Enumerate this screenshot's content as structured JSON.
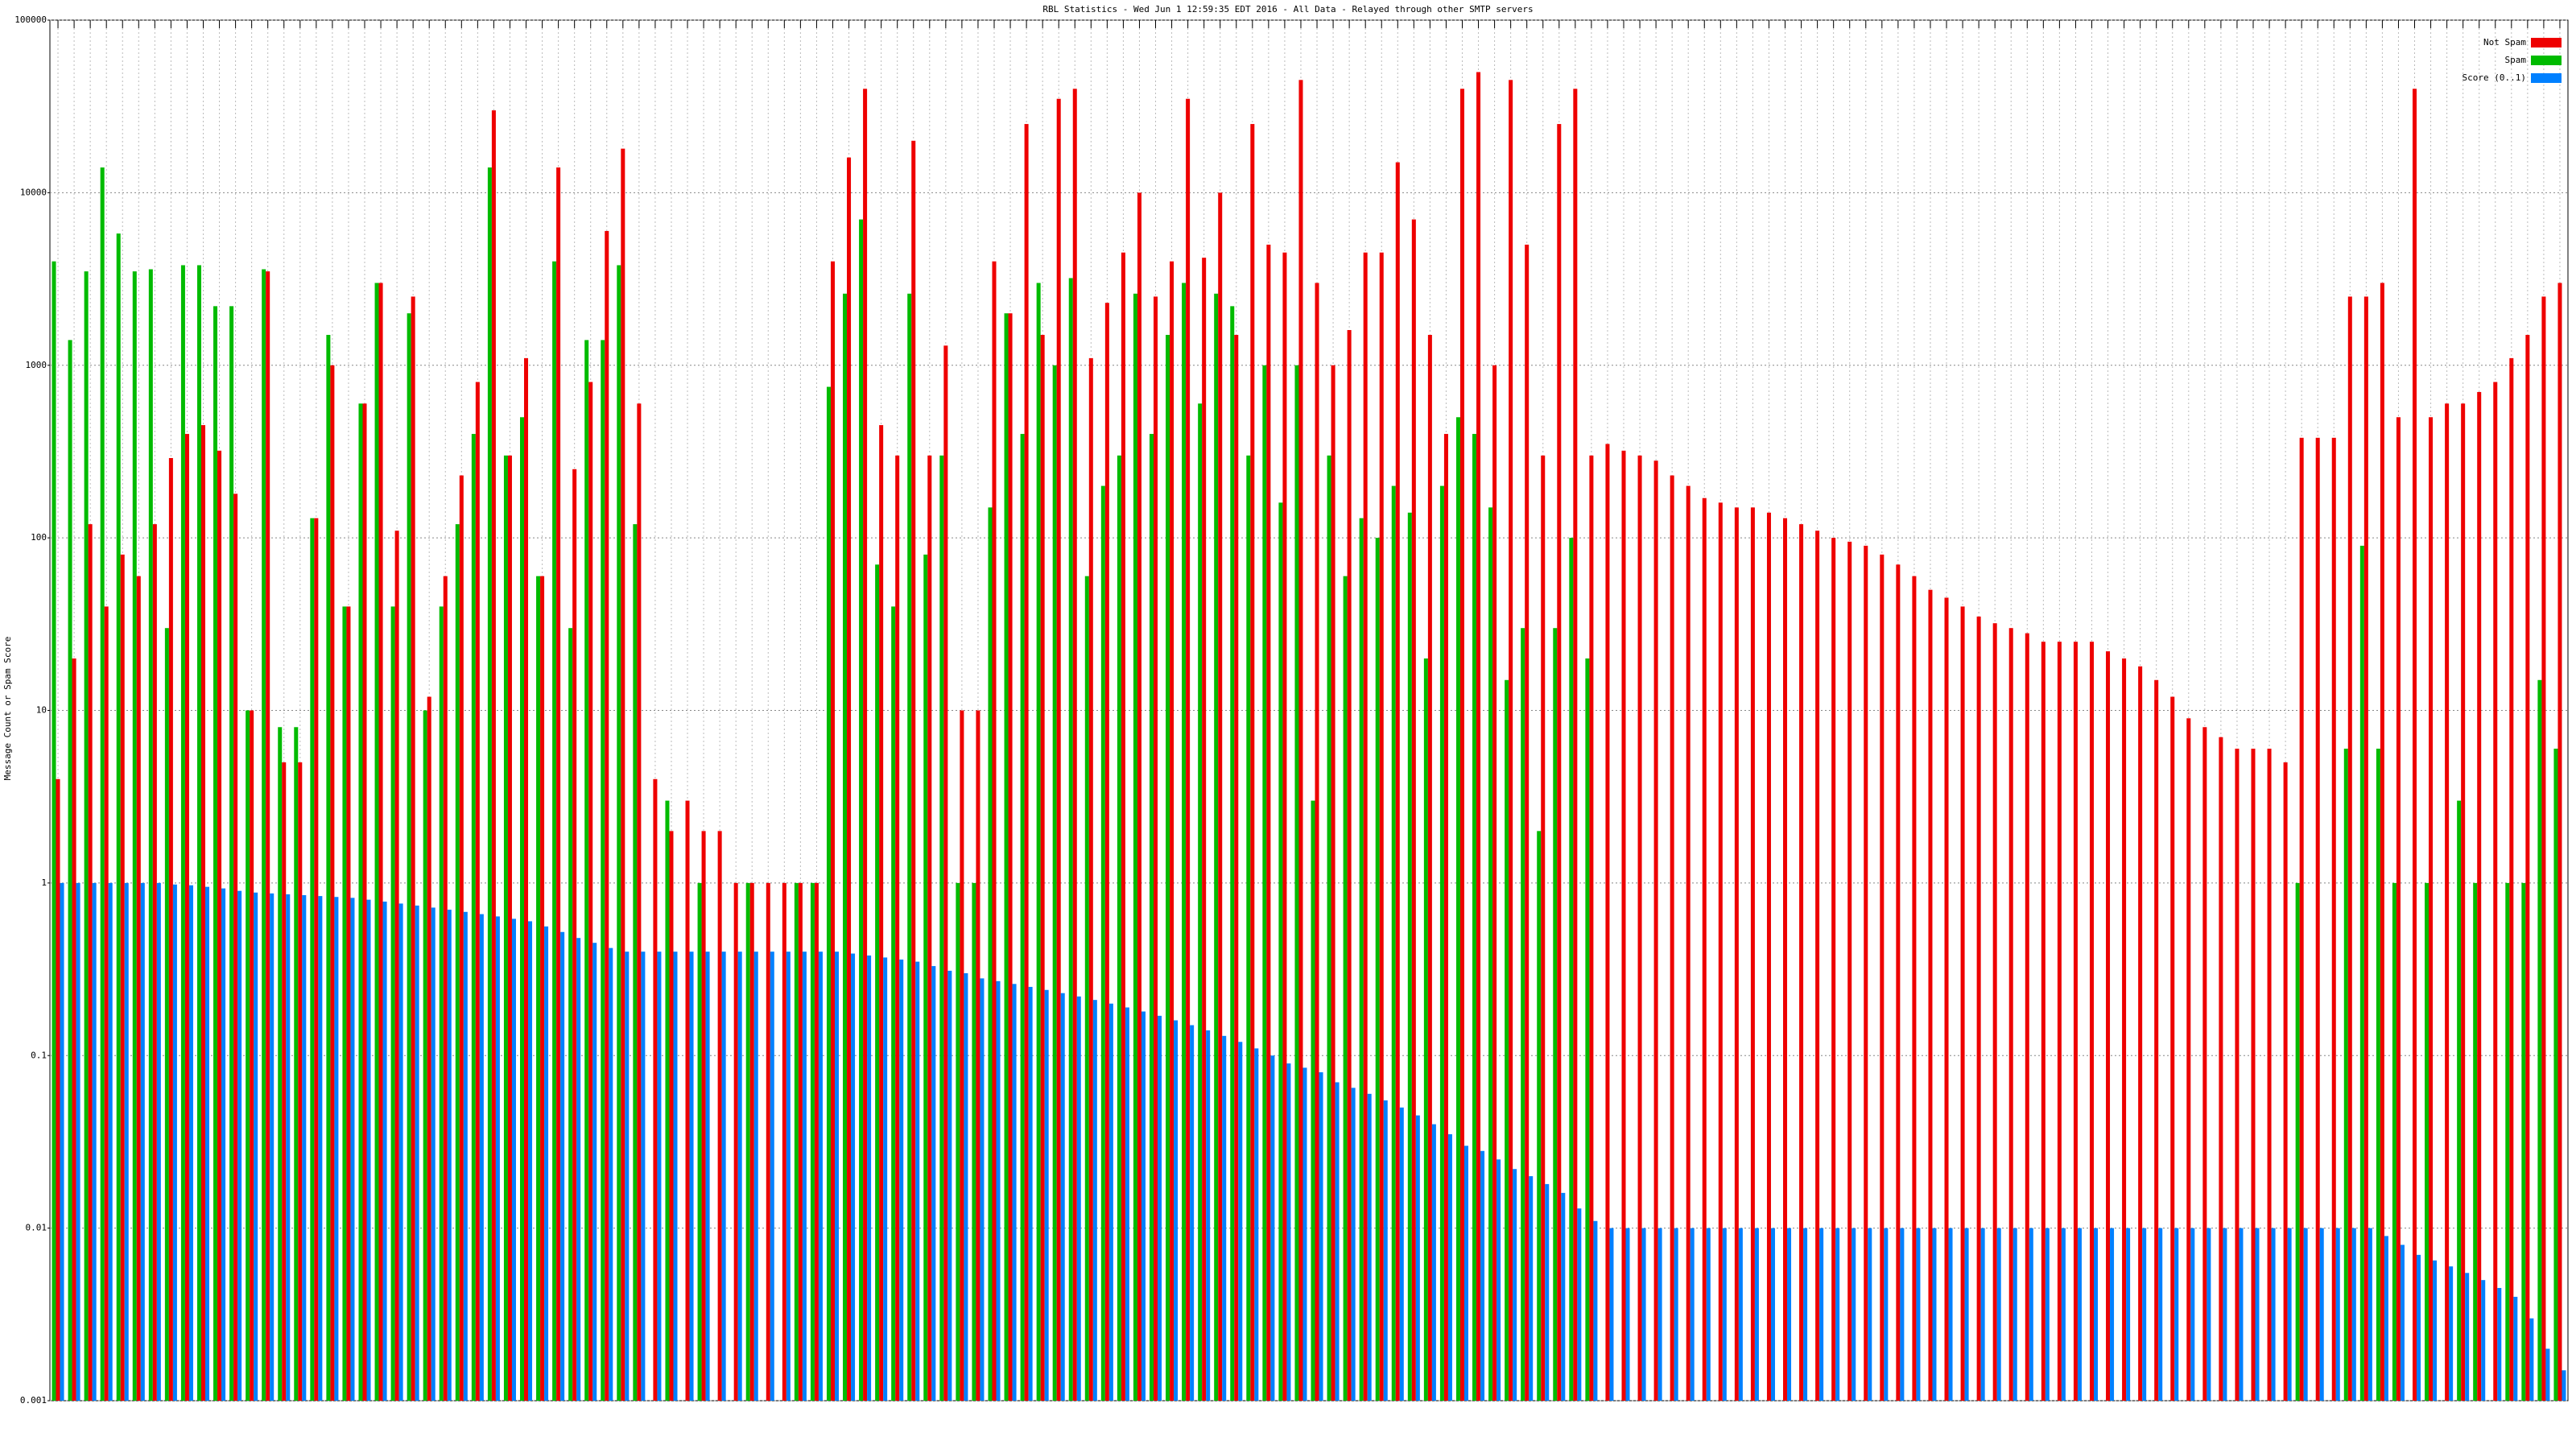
{
  "chart_data": {
    "type": "bar",
    "title": "RBL Statistics - Wed Jun  1 12:59:35 EDT 2016 - All Data - Relayed through other SMTP servers",
    "y_label": "Message Count or Spam Score",
    "log_scale": true,
    "grid": true,
    "legend": "top-right",
    "ylim": [
      0.001,
      100000
    ],
    "yticks": [
      0.001,
      0.01,
      0.1,
      1,
      10,
      100,
      1000,
      10000,
      100000
    ],
    "categories": [
      null,
      null,
      null,
      null,
      null,
      null,
      null,
      null,
      null,
      null,
      null,
      null,
      null,
      null,
      null,
      null,
      null,
      null,
      null,
      null,
      null,
      null,
      null,
      null,
      null,
      null,
      null,
      null,
      null,
      null,
      null,
      null,
      null,
      null,
      null,
      null,
      null,
      null,
      null,
      null,
      null,
      null,
      null,
      null,
      null,
      null,
      null,
      null,
      null,
      null,
      null,
      null,
      null,
      null,
      null,
      null,
      null,
      null,
      null,
      null,
      null,
      null,
      null,
      null,
      null,
      null,
      null,
      null,
      null,
      null,
      null,
      null,
      null,
      null,
      null,
      null,
      null,
      null,
      null,
      null,
      null,
      null,
      null,
      null,
      null,
      null,
      null,
      null,
      null,
      null,
      null,
      null,
      null,
      null,
      null,
      null,
      null,
      null,
      null,
      null,
      null,
      null,
      null,
      null,
      null,
      null,
      null,
      null,
      null,
      null,
      null,
      null,
      null,
      null,
      null,
      null,
      null,
      null,
      null,
      null,
      null,
      null,
      null,
      null,
      null,
      null,
      null,
      null,
      null,
      null,
      null,
      null,
      null,
      null,
      null,
      null,
      null,
      null,
      null,
      null,
      null,
      null,
      null,
      null,
      null,
      null,
      null,
      null,
      null,
      null,
      null,
      null,
      null,
      null,
      null,
      null
    ],
    "series": [
      {
        "name": "Spam",
        "color": "#00bb00",
        "values": [
          4000,
          1400,
          3500,
          14000,
          5800,
          3500,
          3600,
          30,
          3800,
          3800,
          2200,
          2200,
          10,
          3600,
          8,
          8,
          130,
          1500,
          40,
          600,
          3000,
          40,
          2000,
          10,
          40,
          120,
          400,
          14000,
          300,
          500,
          60,
          4000,
          30,
          1400,
          1400,
          3800,
          120,
          null,
          3,
          null,
          1,
          null,
          null,
          1,
          null,
          null,
          1,
          1,
          750,
          2600,
          7000,
          70,
          40,
          2600,
          80,
          300,
          1,
          1,
          150,
          2000,
          400,
          3000,
          1000,
          3200,
          60,
          200,
          300,
          2600,
          400,
          1500,
          3000,
          600,
          2600,
          2200,
          300,
          1000,
          160,
          1000,
          3,
          300,
          60,
          130,
          100,
          200,
          140,
          20,
          200,
          500,
          400,
          150,
          15,
          30,
          2,
          30,
          100,
          20,
          null,
          null,
          null,
          null,
          null,
          null,
          null,
          null,
          null,
          null,
          null,
          null,
          null,
          null,
          null,
          null,
          null,
          null,
          null,
          null,
          null,
          null,
          null,
          null,
          null,
          null,
          null,
          null,
          null,
          null,
          null,
          null,
          null,
          null,
          null,
          null,
          null,
          null,
          null,
          null,
          null,
          null,
          null,
          1,
          null,
          null,
          6,
          90,
          6,
          1,
          null,
          1,
          null,
          3,
          1,
          null,
          1,
          1,
          15,
          6
        ]
      },
      {
        "name": "Not Spam",
        "color": "#ee0000",
        "values": [
          4,
          20,
          120,
          40,
          80,
          60,
          120,
          290,
          400,
          450,
          320,
          180,
          10,
          3500,
          5,
          5,
          130,
          1000,
          40,
          600,
          3000,
          110,
          2500,
          12,
          60,
          230,
          800,
          30000,
          300,
          1100,
          60,
          14000,
          250,
          800,
          6000,
          18000,
          600,
          4,
          2,
          3,
          2,
          2,
          1,
          1,
          1,
          1,
          1,
          1,
          4000,
          16000,
          40000,
          450,
          300,
          20000,
          300,
          1300,
          10,
          10,
          4000,
          2000,
          25000,
          1500,
          35000,
          40000,
          1100,
          2300,
          4500,
          10000,
          2500,
          4000,
          35000,
          4200,
          10000,
          1500,
          25000,
          5000,
          4500,
          45000,
          3000,
          1000,
          1600,
          4500,
          4500,
          15000,
          7000,
          1500,
          400,
          40000,
          50000,
          1000,
          45000,
          5000,
          300,
          25000,
          40000,
          300,
          350,
          320,
          300,
          280,
          230,
          200,
          170,
          160,
          150,
          150,
          140,
          130,
          120,
          110,
          100,
          95,
          90,
          80,
          70,
          60,
          50,
          45,
          40,
          35,
          32,
          30,
          28,
          25,
          25,
          25,
          25,
          22,
          20,
          18,
          15,
          12,
          9,
          8,
          7,
          6,
          6,
          6,
          5,
          380,
          380,
          380,
          2500,
          2500,
          3000,
          500,
          40000,
          500,
          600,
          600,
          700,
          800,
          1100,
          1500,
          2500,
          3000
        ]
      },
      {
        "name": "Score (0..1)",
        "color": "#0080ff",
        "values": [
          1,
          1,
          1,
          1,
          1,
          1,
          1,
          0.98,
          0.97,
          0.95,
          0.93,
          0.9,
          0.88,
          0.87,
          0.86,
          0.85,
          0.84,
          0.83,
          0.82,
          0.8,
          0.78,
          0.76,
          0.74,
          0.72,
          0.7,
          0.68,
          0.66,
          0.64,
          0.62,
          0.6,
          0.56,
          0.52,
          0.48,
          0.45,
          0.42,
          0.4,
          0.4,
          0.4,
          0.4,
          0.4,
          0.4,
          0.4,
          0.4,
          0.4,
          0.4,
          0.4,
          0.4,
          0.4,
          0.4,
          0.39,
          0.38,
          0.37,
          0.36,
          0.35,
          0.33,
          0.31,
          0.3,
          0.28,
          0.27,
          0.26,
          0.25,
          0.24,
          0.23,
          0.22,
          0.21,
          0.2,
          0.19,
          0.18,
          0.17,
          0.16,
          0.15,
          0.14,
          0.13,
          0.12,
          0.11,
          0.1,
          0.09,
          0.085,
          0.08,
          0.07,
          0.065,
          0.06,
          0.055,
          0.05,
          0.045,
          0.04,
          0.035,
          0.03,
          0.028,
          0.025,
          0.022,
          0.02,
          0.018,
          0.016,
          0.013,
          0.011,
          0.01,
          0.01,
          0.01,
          0.01,
          0.01,
          0.01,
          0.01,
          0.01,
          0.01,
          0.01,
          0.01,
          0.01,
          0.01,
          0.01,
          0.01,
          0.01,
          0.01,
          0.01,
          0.01,
          0.01,
          0.01,
          0.01,
          0.01,
          0.01,
          0.01,
          0.01,
          0.01,
          0.01,
          0.01,
          0.01,
          0.01,
          0.01,
          0.01,
          0.01,
          0.01,
          0.01,
          0.01,
          0.01,
          0.01,
          0.01,
          0.01,
          0.01,
          0.01,
          0.01,
          0.01,
          0.01,
          0.01,
          0.01,
          0.009,
          0.008,
          0.007,
          0.0065,
          0.006,
          0.0055,
          0.005,
          0.0045,
          0.004,
          0.003,
          0.002,
          0.0015
        ]
      }
    ]
  }
}
